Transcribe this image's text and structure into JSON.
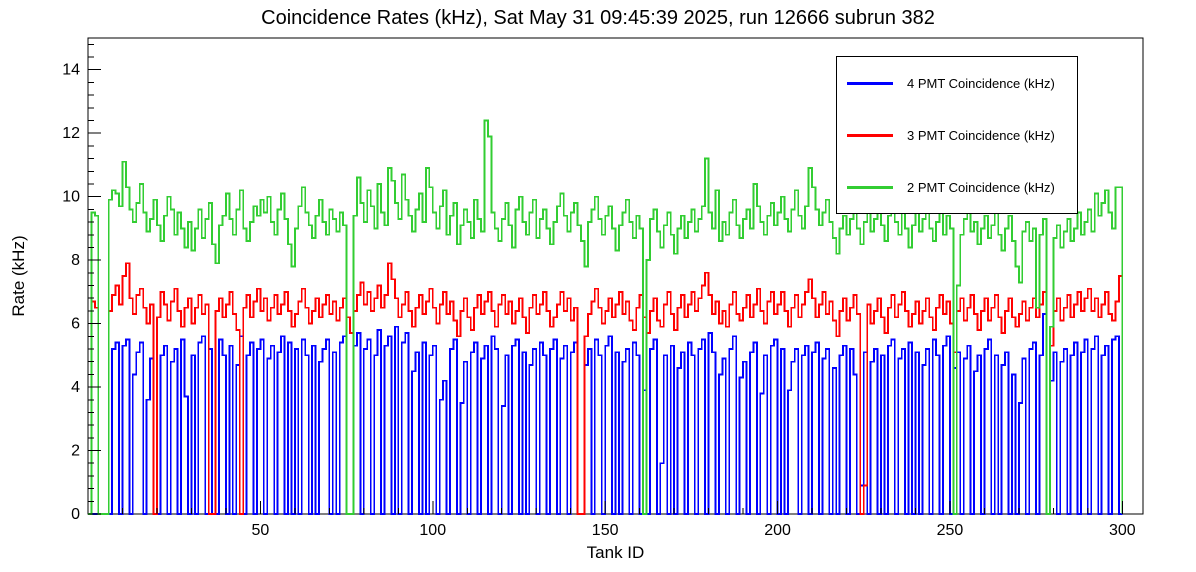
{
  "chart_data": {
    "type": "line",
    "style": "step-histogram",
    "title": "Coincidence Rates (kHz), Sat May 31 09:45:39 2025, run 12666 subrun 382",
    "xlabel": "Tank ID",
    "ylabel": "Rate (kHz)",
    "xlim": [
      0,
      306
    ],
    "ylim": [
      0,
      15
    ],
    "xticks": [
      50,
      100,
      150,
      200,
      250,
      300
    ],
    "yticks": [
      0,
      2,
      4,
      6,
      8,
      10,
      12,
      14
    ],
    "x_minor_step": 10,
    "y_minor_step": 0.4,
    "bin_start": 0,
    "bin_width": 1,
    "grid": false,
    "legend_position": "top-right",
    "axis_color": "#000000",
    "background_color": "#ffffff",
    "series": [
      {
        "name": "4 PMT Coincidence (kHz)",
        "color": "#0000ff",
        "values": [
          0,
          0,
          0,
          0,
          0,
          0,
          0,
          5.2,
          5.4,
          0,
          5.3,
          5.5,
          0,
          4.4,
          5.1,
          5.4,
          0,
          3.6,
          4.9,
          0,
          0,
          5.0,
          5.3,
          0,
          4.8,
          5.2,
          0,
          5.5,
          3.7,
          0,
          5.0,
          0,
          5.4,
          5.6,
          0,
          5.2,
          0,
          0,
          5.5,
          5.0,
          0,
          5.3,
          0,
          4.7,
          5.6,
          0,
          5.0,
          5.4,
          0,
          5.2,
          5.5,
          0,
          4.9,
          5.3,
          0,
          5.1,
          5.6,
          0,
          5.4,
          0,
          5.2,
          0,
          5.5,
          5.0,
          0,
          5.3,
          0,
          4.8,
          5.2,
          5.5,
          0,
          5.1,
          0,
          5.4,
          5.6,
          0,
          0,
          5.3,
          5.7,
          0,
          5.2,
          5.5,
          0,
          5.0,
          5.8,
          0,
          5.3,
          5.6,
          0,
          5.9,
          0,
          5.4,
          5.7,
          0,
          4.5,
          5.1,
          0,
          5.4,
          0,
          5.0,
          5.3,
          0,
          3.6,
          4.2,
          0,
          5.2,
          5.5,
          0,
          3.5,
          4.8,
          0,
          5.1,
          5.4,
          0,
          4.9,
          5.3,
          0,
          5.6,
          5.2,
          0,
          3.4,
          5.0,
          0,
          5.3,
          5.5,
          0,
          5.1,
          0,
          4.7,
          5.2,
          0,
          5.4,
          5.0,
          0,
          5.2,
          5.5,
          0,
          4.9,
          5.3,
          0,
          5.1,
          5.4,
          0,
          0,
          4.7,
          5.2,
          0,
          5.5,
          5.0,
          0,
          5.3,
          5.6,
          0,
          5.1,
          0,
          4.8,
          5.2,
          0,
          5.4,
          5.0,
          0,
          3.9,
          0,
          5.2,
          5.5,
          0,
          1.6,
          5.0,
          0,
          5.3,
          0,
          4.6,
          5.1,
          0,
          5.4,
          5.0,
          0,
          5.2,
          5.5,
          0,
          5.7,
          5.1,
          0,
          4.4,
          4.9,
          0,
          5.2,
          5.6,
          0,
          4.3,
          4.8,
          0,
          5.1,
          5.4,
          0,
          3.8,
          5.0,
          0,
          5.3,
          5.5,
          0,
          5.2,
          0,
          3.9,
          4.8,
          5.2,
          0,
          5.0,
          5.3,
          0,
          5.1,
          5.4,
          0,
          4.9,
          5.2,
          0,
          4.6,
          0,
          5.0,
          5.3,
          0,
          5.2,
          4.4,
          0,
          0.9,
          5.1,
          0,
          4.8,
          5.2,
          0,
          5.0,
          0,
          5.3,
          5.5,
          0,
          4.9,
          5.2,
          0,
          5.4,
          0,
          5.1,
          0,
          4.7,
          5.2,
          0,
          5.5,
          5.0,
          0,
          5.3,
          5.6,
          0,
          4.6,
          5.1,
          0,
          4.9,
          5.3,
          0,
          4.5,
          5.0,
          0,
          5.2,
          5.5,
          0,
          5.0,
          0,
          4.7,
          5.1,
          0,
          4.4,
          0,
          3.5,
          4.9,
          0,
          5.2,
          5.4,
          0,
          5.0,
          6.3,
          0,
          4.2,
          5.1,
          0,
          4.8,
          5.2,
          0,
          5.0,
          5.4,
          0,
          5.1,
          5.5,
          0,
          5.2,
          5.6,
          0,
          5.0,
          5.3,
          0,
          5.5,
          5.6,
          0
        ]
      },
      {
        "name": "3 PMT Coincidence (kHz)",
        "color": "#ff0000",
        "values": [
          0,
          6.7,
          6.5,
          0,
          0,
          0,
          6.4,
          6.9,
          7.2,
          6.6,
          7.5,
          7.9,
          6.8,
          6.3,
          6.9,
          7.1,
          6.5,
          6.0,
          6.6,
          0,
          6.2,
          7.0,
          6.6,
          6.1,
          6.7,
          7.1,
          6.4,
          5.9,
          6.5,
          6.8,
          6.0,
          6.5,
          6.9,
          6.3,
          6.6,
          0,
          0,
          6.4,
          6.8,
          6.2,
          6.6,
          7.0,
          6.3,
          5.8,
          0,
          6.5,
          6.9,
          6.2,
          6.7,
          7.1,
          6.4,
          6.8,
          6.1,
          6.5,
          6.9,
          6.3,
          6.6,
          7.0,
          6.4,
          5.9,
          6.3,
          6.7,
          7.1,
          6.5,
          6.0,
          6.4,
          6.8,
          6.2,
          6.6,
          6.9,
          6.3,
          6.7,
          6.1,
          6.5,
          6.8,
          6.2,
          5.7,
          6.4,
          6.9,
          7.3,
          6.6,
          7.0,
          6.4,
          6.8,
          7.2,
          6.5,
          6.9,
          7.9,
          7.4,
          6.8,
          6.2,
          6.6,
          7.0,
          6.4,
          5.9,
          6.5,
          6.9,
          6.3,
          6.7,
          7.1,
          6.5,
          6.0,
          6.6,
          7.0,
          6.3,
          6.7,
          6.1,
          5.6,
          6.4,
          6.8,
          6.2,
          5.8,
          6.5,
          6.9,
          6.3,
          6.7,
          7.0,
          6.4,
          5.9,
          6.6,
          6.9,
          6.3,
          6.7,
          6.0,
          6.4,
          6.8,
          6.2,
          5.7,
          6.5,
          6.9,
          6.3,
          6.6,
          7.0,
          6.4,
          5.9,
          6.2,
          6.6,
          7.0,
          6.4,
          6.8,
          6.1,
          6.5,
          0,
          0,
          5.6,
          6.3,
          6.7,
          7.1,
          6.5,
          6.0,
          6.4,
          6.8,
          6.2,
          6.6,
          7.0,
          6.3,
          6.7,
          6.1,
          5.8,
          6.5,
          6.9,
          6.2,
          5.7,
          6.4,
          6.8,
          6.1,
          5.9,
          6.6,
          7.0,
          6.3,
          5.8,
          6.5,
          6.9,
          6.2,
          6.6,
          7.0,
          6.4,
          6.8,
          7.2,
          7.6,
          6.9,
          6.3,
          6.7,
          6.0,
          6.4,
          5.9,
          6.6,
          7.0,
          6.3,
          6.1,
          6.5,
          6.9,
          6.2,
          6.6,
          7.1,
          6.4,
          6.0,
          6.7,
          7.0,
          6.3,
          6.6,
          7.0,
          6.4,
          5.9,
          6.5,
          6.9,
          6.2,
          6.6,
          7.0,
          7.4,
          6.8,
          6.2,
          6.6,
          7.0,
          6.3,
          6.7,
          6.1,
          5.6,
          6.4,
          6.8,
          6.1,
          6.5,
          6.9,
          6.3,
          0,
          0.9,
          6.6,
          6.0,
          6.4,
          6.8,
          6.2,
          5.7,
          6.5,
          6.9,
          6.2,
          6.6,
          7.0,
          6.4,
          5.9,
          6.3,
          6.7,
          6.0,
          6.4,
          6.8,
          6.2,
          5.8,
          6.5,
          6.9,
          6.3,
          6.7,
          6.0,
          5.1,
          6.4,
          6.8,
          6.1,
          6.5,
          6.9,
          6.3,
          5.8,
          6.4,
          6.8,
          6.1,
          6.5,
          6.9,
          6.2,
          5.7,
          6.4,
          6.8,
          6.2,
          5.9,
          6.3,
          6.7,
          6.1,
          6.5,
          6.8,
          6.2,
          6.6,
          7.0,
          0,
          5.3,
          6.4,
          6.8,
          6.1,
          6.5,
          6.9,
          6.2,
          6.6,
          7.0,
          6.4,
          6.8,
          7.1,
          6.4,
          6.8,
          6.2,
          6.6,
          7.0,
          6.3,
          6.1,
          6.7,
          7.5
        ]
      },
      {
        "name": "2 PMT Coincidence (kHz)",
        "color": "#32cd32",
        "values": [
          0,
          9.5,
          9.4,
          0,
          0,
          0,
          9.9,
          10.2,
          10.1,
          9.7,
          11.1,
          10.3,
          9.6,
          9.2,
          9.8,
          10.4,
          9.5,
          8.9,
          9.3,
          9.9,
          9.1,
          8.6,
          9.4,
          10.0,
          9.6,
          8.8,
          9.5,
          9.0,
          8.4,
          9.2,
          8.3,
          9.0,
          9.6,
          8.7,
          9.3,
          9.8,
          8.5,
          7.9,
          9.1,
          9.4,
          10.1,
          9.3,
          8.8,
          9.6,
          10.2,
          9.0,
          8.6,
          9.2,
          9.7,
          9.4,
          9.9,
          9.5,
          10.0,
          9.2,
          8.8,
          9.6,
          10.1,
          9.3,
          8.5,
          7.8,
          9.0,
          9.7,
          10.3,
          9.5,
          9.1,
          8.7,
          9.4,
          9.9,
          9.2,
          8.8,
          9.6,
          9.3,
          8.9,
          9.5,
          9.1,
          0,
          0,
          9.4,
          10.6,
          9.8,
          9.2,
          10.2,
          9.7,
          9.0,
          10.4,
          9.5,
          9.1,
          10.9,
          10.5,
          9.8,
          9.3,
          10.7,
          9.9,
          9.4,
          8.9,
          9.6,
          10.1,
          9.2,
          10.9,
          10.3,
          9.5,
          9.0,
          9.7,
          10.2,
          8.8,
          9.4,
          9.8,
          8.5,
          9.1,
          9.6,
          9.2,
          8.7,
          9.9,
          9.3,
          8.9,
          12.4,
          11.9,
          9.5,
          9.0,
          8.6,
          9.3,
          9.8,
          9.1,
          8.4,
          9.6,
          10.0,
          9.2,
          8.8,
          9.5,
          9.9,
          8.7,
          9.3,
          9.6,
          9.0,
          8.5,
          9.2,
          9.7,
          10.1,
          9.4,
          8.9,
          9.5,
          9.8,
          9.1,
          8.6,
          7.8,
          9.2,
          9.6,
          10.0,
          9.3,
          8.8,
          9.4,
          9.7,
          9.0,
          8.3,
          9.1,
          9.5,
          9.9,
          9.2,
          8.7,
          9.4,
          9.0,
          0,
          8.0,
          9.3,
          9.6,
          8.9,
          8.4,
          9.1,
          9.5,
          8.8,
          8.2,
          9.0,
          9.4,
          8.7,
          9.2,
          9.6,
          8.9,
          9.3,
          9.7,
          11.2,
          9.5,
          9.0,
          10.2,
          8.6,
          9.2,
          8.8,
          9.5,
          9.9,
          9.1,
          8.7,
          9.3,
          9.6,
          9.0,
          10.4,
          9.7,
          9.2,
          8.8,
          9.4,
          9.8,
          9.1,
          9.5,
          10.0,
          9.3,
          8.9,
          9.6,
          10.2,
          9.4,
          9.0,
          9.7,
          10.9,
          10.3,
          9.6,
          9.1,
          9.5,
          9.9,
          9.2,
          8.7,
          8.2,
          9.0,
          9.4,
          8.8,
          9.3,
          9.7,
          9.0,
          8.5,
          9.2,
          9.6,
          8.9,
          9.3,
          9.8,
          9.1,
          8.6,
          9.4,
          9.9,
          9.2,
          8.8,
          9.5,
          9.0,
          8.4,
          9.1,
          9.6,
          8.9,
          9.3,
          9.7,
          9.0,
          8.6,
          9.2,
          9.5,
          8.8,
          9.4,
          9.0,
          0,
          7.2,
          8.8,
          9.3,
          9.6,
          8.9,
          9.2,
          8.5,
          9.0,
          9.4,
          8.7,
          9.1,
          9.5,
          8.8,
          8.3,
          9.0,
          9.4,
          8.6,
          7.8,
          7.3,
          8.9,
          9.2,
          8.6,
          9.0,
          6.5,
          8.8,
          9.3,
          0,
          5.9,
          8.7,
          9.1,
          8.4,
          8.9,
          9.3,
          8.6,
          9.0,
          9.5,
          8.8,
          9.2,
          9.6,
          8.9,
          10.1,
          9.4,
          9.8,
          10.2,
          9.5,
          9.0,
          10.3,
          10.3
        ]
      }
    ]
  }
}
